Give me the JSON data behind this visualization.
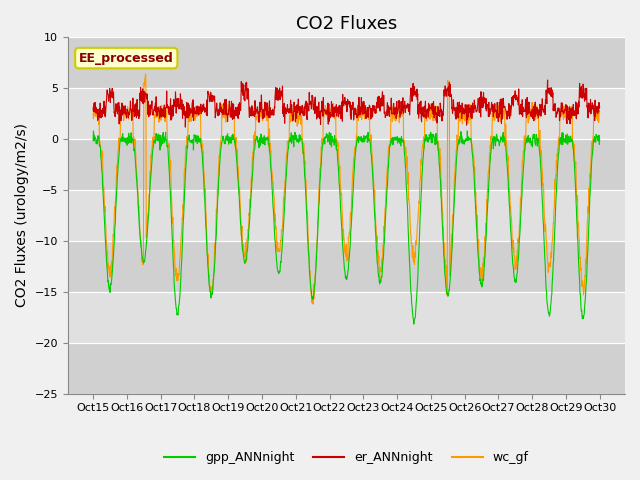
{
  "title": "CO2 Fluxes",
  "ylabel": "CO2 Fluxes (urology/m2/s)",
  "xlabel": "",
  "ylim": [
    -25,
    10
  ],
  "yticks": [
    -25,
    -20,
    -15,
    -10,
    -5,
    0,
    5,
    10
  ],
  "xtick_labels": [
    "Oct 15",
    "Oct 16",
    "Oct 17",
    "Oct 18",
    "Oct 19",
    "Oct 20",
    "Oct 21",
    "Oct 22",
    "Oct 23",
    "Oct 24",
    "Oct 25",
    "Oct 26",
    "Oct 27",
    "Oct 28",
    "Oct 29",
    "Oct 30"
  ],
  "colors": {
    "gpp": "#00cc00",
    "er": "#cc0000",
    "wc": "#ff9900"
  },
  "legend_labels": [
    "gpp_ANNnight",
    "er_ANNnight",
    "wc_gf"
  ],
  "annotation_text": "EE_processed",
  "annotation_color": "#8b0000",
  "annotation_bg": "#ffffcc",
  "annotation_border": "#cccc00",
  "background_color": "#f0f0f0",
  "plot_bg": "#e8e8e8",
  "n_points": 1440,
  "title_fontsize": 13,
  "label_fontsize": 10
}
